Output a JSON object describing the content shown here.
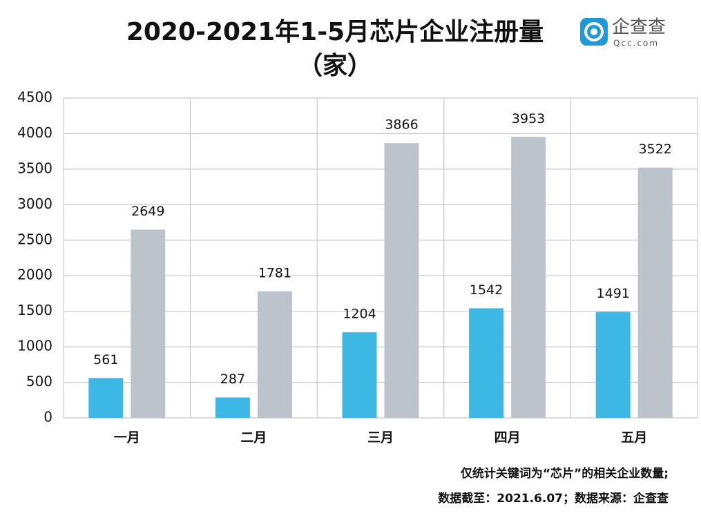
{
  "chart_data": {
    "type": "bar",
    "title": "2020-2021年1-5月芯片企业注册量",
    "subtitle": "（家）",
    "logo": {
      "name": "企查查",
      "domain": "Qcc.com"
    },
    "categories": [
      "一月",
      "二月",
      "三月",
      "四月",
      "五月"
    ],
    "series": [
      {
        "color": "#3db8e5",
        "values": [
          561,
          287,
          1204,
          1542,
          1491
        ]
      },
      {
        "color": "#bcc3cb",
        "values": [
          2649,
          1781,
          3866,
          3953,
          3522
        ]
      }
    ],
    "ylim": [
      0,
      4500
    ],
    "yticks": [
      0,
      500,
      1000,
      1500,
      2000,
      2500,
      3000,
      3500,
      4000,
      4500
    ],
    "grid": true,
    "notes": [
      "仅统计关键词为“芯片”的相关企业数量;",
      "数据截至：2021.6.07；数据来源：企查查"
    ]
  }
}
